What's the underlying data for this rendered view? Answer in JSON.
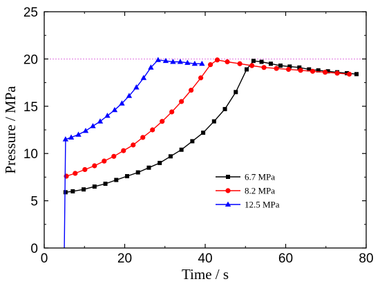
{
  "chart_data": {
    "type": "line",
    "title": "",
    "xlabel": "Time / s",
    "ylabel": "Pressure  / MPa",
    "xlim": [
      0,
      80
    ],
    "ylim": [
      0,
      25
    ],
    "xticks": [
      0,
      20,
      40,
      60,
      80
    ],
    "yticks": [
      0,
      5,
      10,
      15,
      20,
      25
    ],
    "grid": false,
    "legend_position": "center-right",
    "reference_line": {
      "y": 20,
      "color": "#e070e0",
      "style": "dashed"
    },
    "series": [
      {
        "name": "6.7 MPa",
        "color": "#000000",
        "marker": "square",
        "x": [
          5,
          5.3,
          7.1,
          9.8,
          12.5,
          15.2,
          17.9,
          20.6,
          23.3,
          26,
          28.7,
          31.4,
          34.1,
          36.8,
          39.5,
          42.2,
          44.9,
          47.6,
          50.3,
          52,
          54,
          56.3,
          58.7,
          61,
          63.4,
          65.8,
          68.1,
          70.5,
          72.8,
          75.2,
          77.6
        ],
        "y": [
          5.8,
          5.9,
          6.0,
          6.2,
          6.5,
          6.8,
          7.2,
          7.6,
          8.0,
          8.5,
          9.0,
          9.7,
          10.4,
          11.3,
          12.2,
          13.4,
          14.7,
          16.5,
          18.9,
          19.8,
          19.7,
          19.5,
          19.3,
          19.2,
          19.1,
          18.9,
          18.8,
          18.7,
          18.6,
          18.5,
          18.4
        ]
      },
      {
        "name": "8.2 MPa",
        "color": "#ff0000",
        "marker": "circle",
        "x": [
          5,
          5.5,
          7.7,
          10.1,
          12.5,
          14.9,
          17.3,
          19.7,
          22.1,
          24.5,
          26.9,
          29.3,
          31.7,
          34.1,
          36.5,
          38.9,
          41.3,
          43,
          45.5,
          48.6,
          51.6,
          54.6,
          57.7,
          60.7,
          63.7,
          66.7,
          69.8,
          72.8,
          75.8
        ],
        "y": [
          7.5,
          7.6,
          7.9,
          8.3,
          8.7,
          9.2,
          9.7,
          10.3,
          10.9,
          11.7,
          12.5,
          13.4,
          14.4,
          15.5,
          16.7,
          18.0,
          19.4,
          19.9,
          19.7,
          19.5,
          19.3,
          19.1,
          19.0,
          18.9,
          18.8,
          18.7,
          18.6,
          18.5,
          18.4
        ]
      },
      {
        "name": "12.5 MPa",
        "color": "#0000ff",
        "marker": "triangle",
        "x": [
          5,
          5.3,
          6.7,
          8.5,
          10.3,
          12.1,
          13.9,
          15.7,
          17.5,
          19.3,
          21.1,
          22.9,
          24.7,
          26.5,
          28.3,
          30.2,
          32,
          33.8,
          35.6,
          37.4,
          39.2
        ],
        "y": [
          0,
          11.5,
          11.7,
          12.0,
          12.4,
          12.9,
          13.4,
          14.0,
          14.6,
          15.3,
          16.1,
          17.0,
          18.0,
          19.1,
          19.9,
          19.8,
          19.7,
          19.7,
          19.6,
          19.5,
          19.5
        ]
      }
    ]
  }
}
